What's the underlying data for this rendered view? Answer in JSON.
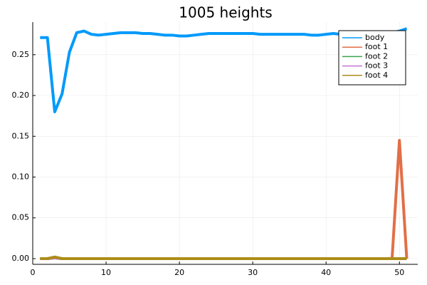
{
  "chart_data": {
    "type": "line",
    "title": "1005 heights",
    "xlabel": "",
    "ylabel": "",
    "xlim": [
      0,
      52.5
    ],
    "ylim": [
      -0.007,
      0.29
    ],
    "xticks": [
      0,
      10,
      20,
      30,
      40,
      50
    ],
    "yticks": [
      0.0,
      0.05,
      0.1,
      0.15,
      0.2,
      0.25
    ],
    "ytick_labels": [
      "0.00",
      "0.05",
      "0.10",
      "0.15",
      "0.20",
      "0.25"
    ],
    "xtick_labels": [
      "0",
      "10",
      "20",
      "30",
      "40",
      "50"
    ],
    "grid": true,
    "legend_position": "top-right",
    "series": [
      {
        "name": "body",
        "color": "#009AFA",
        "x": [
          1,
          2,
          3,
          4,
          5,
          6,
          7,
          8,
          9,
          10,
          11,
          12,
          13,
          14,
          15,
          16,
          17,
          18,
          19,
          20,
          21,
          22,
          23,
          24,
          25,
          26,
          27,
          28,
          29,
          30,
          31,
          32,
          33,
          34,
          35,
          36,
          37,
          38,
          39,
          40,
          41,
          42,
          43,
          44,
          45,
          46,
          47,
          48,
          49,
          50,
          51
        ],
        "y": [
          0.271,
          0.271,
          0.18,
          0.202,
          0.253,
          0.277,
          0.279,
          0.275,
          0.274,
          0.275,
          0.276,
          0.277,
          0.277,
          0.277,
          0.276,
          0.276,
          0.275,
          0.274,
          0.274,
          0.273,
          0.273,
          0.274,
          0.275,
          0.276,
          0.276,
          0.276,
          0.276,
          0.276,
          0.276,
          0.276,
          0.275,
          0.275,
          0.275,
          0.275,
          0.275,
          0.275,
          0.275,
          0.274,
          0.274,
          0.275,
          0.276,
          0.275,
          0.275,
          0.275,
          0.274,
          0.275,
          0.276,
          0.277,
          0.277,
          0.279,
          0.282
        ]
      },
      {
        "name": "foot 1",
        "color": "#E26F46",
        "x": [
          1,
          2,
          3,
          4,
          5,
          6,
          7,
          8,
          9,
          10,
          11,
          12,
          13,
          14,
          15,
          16,
          17,
          18,
          19,
          20,
          21,
          22,
          23,
          24,
          25,
          26,
          27,
          28,
          29,
          30,
          31,
          32,
          33,
          34,
          35,
          36,
          37,
          38,
          39,
          40,
          41,
          42,
          43,
          44,
          45,
          46,
          47,
          48,
          49,
          50,
          51
        ],
        "y": [
          0,
          0,
          0.001,
          0,
          0,
          0,
          0,
          0,
          0,
          0,
          0,
          0,
          0,
          0,
          0,
          0,
          0,
          0,
          0,
          0,
          0,
          0,
          0,
          0,
          0,
          0,
          0,
          0,
          0,
          0,
          0,
          0,
          0,
          0,
          0,
          0,
          0,
          0,
          0,
          0,
          0,
          0,
          0,
          0,
          0,
          0,
          0,
          0,
          0,
          0.145,
          0
        ]
      },
      {
        "name": "foot 2",
        "color": "#3DA44D",
        "x": [
          1,
          2,
          3,
          4,
          5,
          6,
          7,
          8,
          9,
          10,
          11,
          12,
          13,
          14,
          15,
          16,
          17,
          18,
          19,
          20,
          21,
          22,
          23,
          24,
          25,
          26,
          27,
          28,
          29,
          30,
          31,
          32,
          33,
          34,
          35,
          36,
          37,
          38,
          39,
          40,
          41,
          42,
          43,
          44,
          45,
          46,
          47,
          48,
          49,
          50,
          51
        ],
        "y": [
          0,
          0,
          0.001,
          0,
          0,
          0,
          0,
          0,
          0,
          0,
          0,
          0,
          0,
          0,
          0,
          0,
          0,
          0,
          0,
          0,
          0,
          0,
          0,
          0,
          0,
          0,
          0,
          0,
          0,
          0,
          0,
          0,
          0,
          0,
          0,
          0,
          0,
          0,
          0,
          0,
          0,
          0,
          0,
          0,
          0,
          0,
          0,
          0,
          0,
          0,
          0
        ]
      },
      {
        "name": "foot 3",
        "color": "#C271D2",
        "x": [
          1,
          2,
          3,
          4,
          5,
          6,
          7,
          8,
          9,
          10,
          11,
          12,
          13,
          14,
          15,
          16,
          17,
          18,
          19,
          20,
          21,
          22,
          23,
          24,
          25,
          26,
          27,
          28,
          29,
          30,
          31,
          32,
          33,
          34,
          35,
          36,
          37,
          38,
          39,
          40,
          41,
          42,
          43,
          44,
          45,
          46,
          47,
          48,
          49,
          50,
          51
        ],
        "y": [
          0,
          0,
          0.001,
          0,
          0,
          0,
          0,
          0,
          0,
          0,
          0,
          0,
          0,
          0,
          0,
          0,
          0,
          0,
          0,
          0,
          0,
          0,
          0,
          0,
          0,
          0,
          0,
          0,
          0,
          0,
          0,
          0,
          0,
          0,
          0,
          0,
          0,
          0,
          0,
          0,
          0,
          0,
          0,
          0,
          0,
          0,
          0,
          0,
          0,
          0,
          0
        ]
      },
      {
        "name": "foot 4",
        "color": "#AC8D18",
        "x": [
          1,
          2,
          3,
          4,
          5,
          6,
          7,
          8,
          9,
          10,
          11,
          12,
          13,
          14,
          15,
          16,
          17,
          18,
          19,
          20,
          21,
          22,
          23,
          24,
          25,
          26,
          27,
          28,
          29,
          30,
          31,
          32,
          33,
          34,
          35,
          36,
          37,
          38,
          39,
          40,
          41,
          42,
          43,
          44,
          45,
          46,
          47,
          48,
          49,
          50,
          51
        ],
        "y": [
          0,
          0,
          0.002,
          0,
          0,
          0,
          0,
          0,
          0,
          0,
          0,
          0,
          0,
          0,
          0,
          0,
          0,
          0,
          0,
          0,
          0,
          0,
          0,
          0,
          0,
          0,
          0,
          0,
          0,
          0,
          0,
          0,
          0,
          0,
          0,
          0,
          0,
          0,
          0,
          0,
          0,
          0,
          0,
          0,
          0,
          0,
          0,
          0,
          0,
          0,
          0
        ]
      }
    ]
  }
}
